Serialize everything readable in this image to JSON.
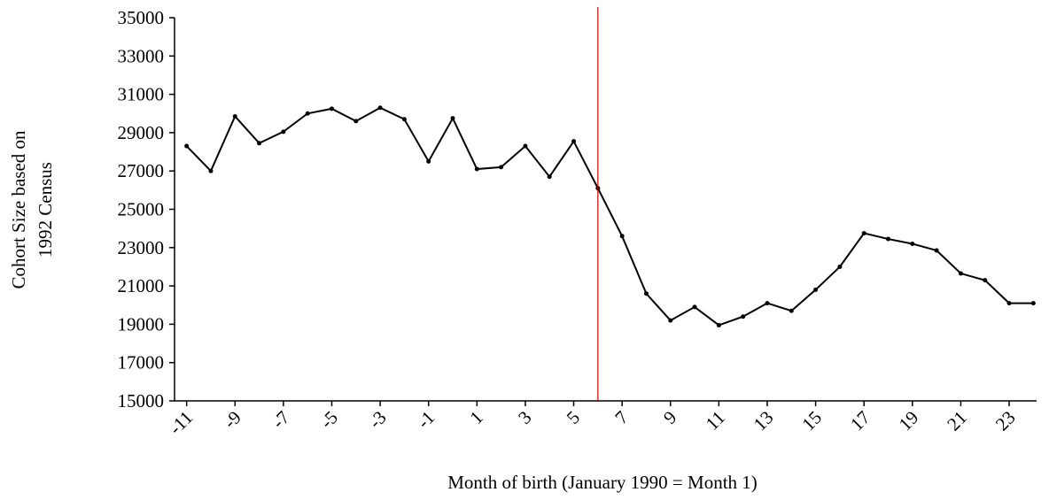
{
  "chart_data": {
    "type": "line",
    "xlabel": "Month of birth (January 1990 = Month 1)",
    "ylabel": [
      "Cohort Size based on",
      "1992 Census"
    ],
    "x": [
      -11,
      -10,
      -9,
      -8,
      -7,
      -6,
      -5,
      -4,
      -3,
      -2,
      -1,
      0,
      1,
      2,
      3,
      4,
      5,
      6,
      7,
      8,
      9,
      10,
      11,
      12,
      13,
      14,
      15,
      16,
      17,
      18,
      19,
      20,
      21,
      22,
      23,
      24
    ],
    "series": [
      {
        "color": "#000000",
        "values": [
          28300,
          27000,
          29850,
          28450,
          29050,
          30000,
          30250,
          29600,
          30300,
          29700,
          27500,
          29750,
          27100,
          27200,
          28300,
          26700,
          28550,
          26100,
          23600,
          20600,
          19200,
          19900,
          18950,
          19400,
          20100,
          19700,
          20800,
          22000,
          23750,
          23450,
          23200,
          22850,
          21650,
          21300,
          20100,
          20100
        ]
      }
    ],
    "xlim": [
      -11.5,
      24.5
    ],
    "xticks": [
      -11,
      -9,
      -7,
      -5,
      -3,
      -1,
      1,
      3,
      5,
      7,
      9,
      11,
      13,
      15,
      17,
      19,
      21,
      23
    ],
    "ylim": [
      15000,
      35000
    ],
    "yticks": [
      15000,
      17000,
      19000,
      21000,
      23000,
      25000,
      27000,
      29000,
      31000,
      33000,
      35000
    ],
    "reference_line": {
      "x": 6,
      "color": "#cc0000"
    }
  }
}
